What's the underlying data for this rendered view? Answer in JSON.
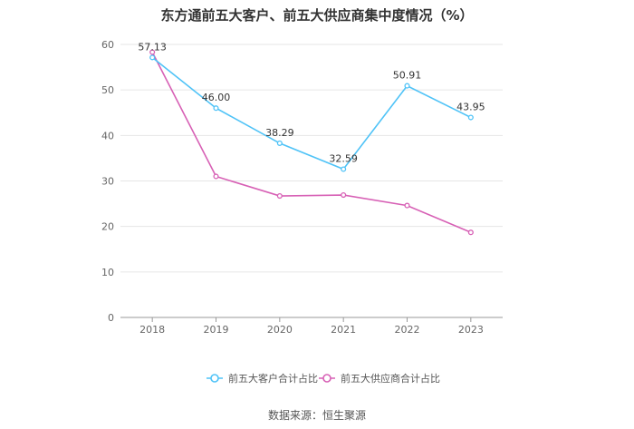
{
  "chart_data": {
    "type": "line",
    "title": "东方通前五大客户、前五大供应商集中度情况（%）",
    "categories": [
      "2018",
      "2019",
      "2020",
      "2021",
      "2022",
      "2023"
    ],
    "ylim": [
      0,
      60
    ],
    "yticks": [
      0,
      10,
      20,
      30,
      40,
      50,
      60
    ],
    "grid": true,
    "legend_position": "bottom",
    "series": [
      {
        "name": "前五大客户合计占比",
        "color": "#4fc3f7",
        "values": [
          57.13,
          46.0,
          38.29,
          32.59,
          50.91,
          43.95
        ],
        "labels": [
          "57.13",
          "46.00",
          "38.29",
          "32.59",
          "50.91",
          "43.95"
        ]
      },
      {
        "name": "前五大供应商合计占比",
        "color": "#d760b5",
        "values": [
          58.3,
          31.0,
          26.7,
          26.9,
          24.6,
          18.7
        ],
        "labels": []
      }
    ]
  },
  "source_text": "数据来源：恒生聚源"
}
